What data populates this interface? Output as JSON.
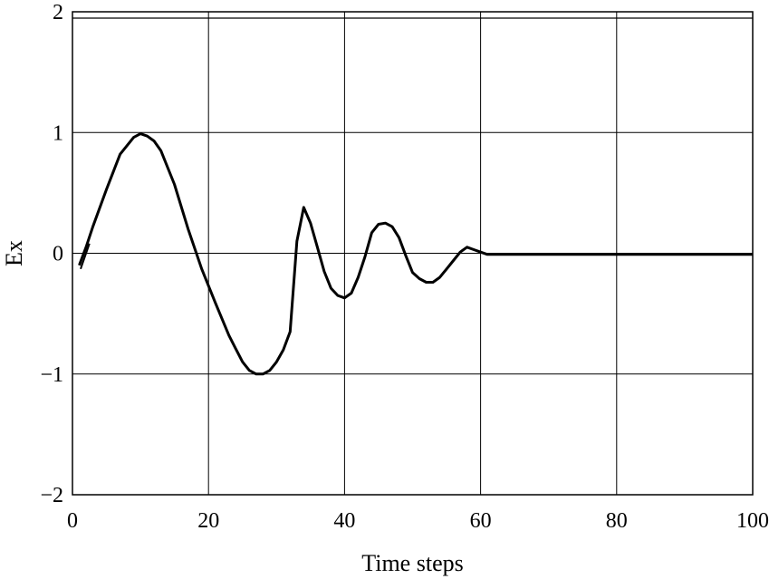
{
  "chart_data": {
    "type": "line",
    "title": "",
    "xlabel": "Time steps",
    "ylabel": "Ex",
    "xlim": [
      0,
      100
    ],
    "ylim": [
      -2,
      2
    ],
    "xticks": [
      "0",
      "20",
      "40",
      "60",
      "80",
      "100"
    ],
    "yticks": [
      "2",
      "1",
      "0",
      "−1",
      "−2"
    ],
    "grid": true,
    "legend": "none",
    "line_color": "#000000",
    "series": [
      {
        "x": [
          1,
          2,
          3,
          5,
          7,
          9,
          10,
          11,
          12,
          13,
          15,
          17,
          19,
          21,
          23,
          24,
          25,
          26,
          27,
          28,
          29,
          30,
          31,
          32,
          33,
          34,
          35,
          36,
          37,
          38,
          39,
          40,
          41,
          42,
          43,
          44,
          45,
          46,
          47,
          48,
          49,
          50,
          51,
          52,
          53,
          54,
          55,
          56,
          57,
          58,
          59,
          60,
          61,
          100
        ],
        "y": [
          -0.1,
          0.05,
          0.22,
          0.53,
          0.82,
          0.96,
          0.99,
          0.97,
          0.93,
          0.85,
          0.57,
          0.2,
          -0.13,
          -0.41,
          -0.68,
          -0.79,
          -0.9,
          -0.97,
          -1.0,
          -1.0,
          -0.97,
          -0.9,
          -0.8,
          -0.65,
          0.1,
          0.38,
          0.25,
          0.05,
          -0.15,
          -0.29,
          -0.35,
          -0.37,
          -0.33,
          -0.2,
          -0.03,
          0.17,
          0.24,
          0.25,
          0.22,
          0.13,
          -0.02,
          -0.16,
          -0.21,
          -0.24,
          -0.24,
          -0.2,
          -0.13,
          -0.06,
          0.01,
          0.05,
          0.03,
          0.01,
          -0.01,
          -0.01
        ]
      }
    ]
  }
}
